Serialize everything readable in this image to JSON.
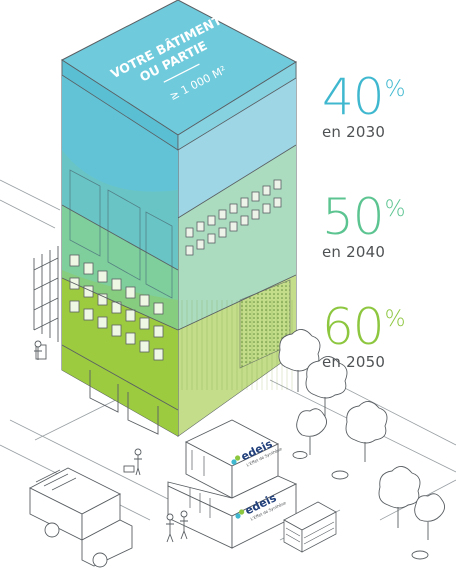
{
  "building": {
    "top_line1": "VOTRE BÂTIMENT",
    "top_line2": "OU PARTIE",
    "top_area": "≥ 1 000 M²"
  },
  "targets": [
    {
      "percent": "40",
      "unit": "%",
      "year": "en 2030",
      "color": "#3fb8cf"
    },
    {
      "percent": "50",
      "unit": "%",
      "year": "en 2040",
      "color": "#5cc491"
    },
    {
      "percent": "60",
      "unit": "%",
      "year": "en 2050",
      "color": "#8dc63f"
    }
  ],
  "containers": [
    {
      "brand": "edeis",
      "tagline": "L'Effet de Synthèse"
    },
    {
      "brand": "edeis",
      "tagline": "L'Effet de Synthèse"
    }
  ],
  "colors": {
    "blue": "#5ec4d8",
    "mint": "#7fd0a2",
    "green": "#9dcb3e",
    "line": "#5a5f63"
  }
}
